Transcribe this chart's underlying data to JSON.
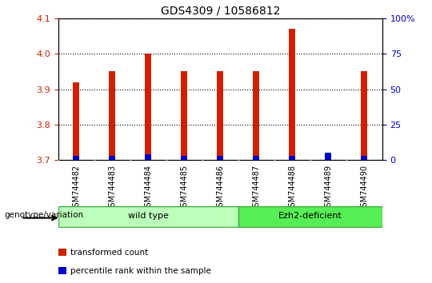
{
  "title": "GDS4309 / 10586812",
  "samples": [
    "GSM744482",
    "GSM744483",
    "GSM744484",
    "GSM744485",
    "GSM744486",
    "GSM744487",
    "GSM744488",
    "GSM744489",
    "GSM744490"
  ],
  "red_values": [
    3.92,
    3.95,
    4.0,
    3.95,
    3.95,
    3.95,
    4.07,
    3.7,
    3.95
  ],
  "blue_percentile_values": [
    3,
    3,
    4,
    3,
    3,
    3,
    3,
    5,
    3
  ],
  "ylim_left": [
    3.7,
    4.1
  ],
  "ylim_right": [
    0,
    100
  ],
  "yticks_left": [
    3.7,
    3.8,
    3.9,
    4.0,
    4.1
  ],
  "yticks_right": [
    0,
    25,
    50,
    75,
    100
  ],
  "ytick_labels_right": [
    "0",
    "25",
    "50",
    "75",
    "100%"
  ],
  "bar_bottom": 3.7,
  "wild_type_count": 5,
  "wild_type_label": "wild type",
  "ezh2_label": "Ezh2-deficient",
  "genotype_label": "genotype/variation",
  "legend_red": "transformed count",
  "legend_blue": "percentile rank within the sample",
  "red_color": "#cc2200",
  "blue_color": "#0000cc",
  "wild_type_color": "#bbffbb",
  "ezh2_color": "#55ee55",
  "xtick_bg_color": "#cccccc",
  "bar_width": 0.18,
  "blue_bar_width": 0.18,
  "bg_color": "#ffffff",
  "tick_label_color_left": "#cc2200",
  "tick_label_color_right": "#0000cc"
}
